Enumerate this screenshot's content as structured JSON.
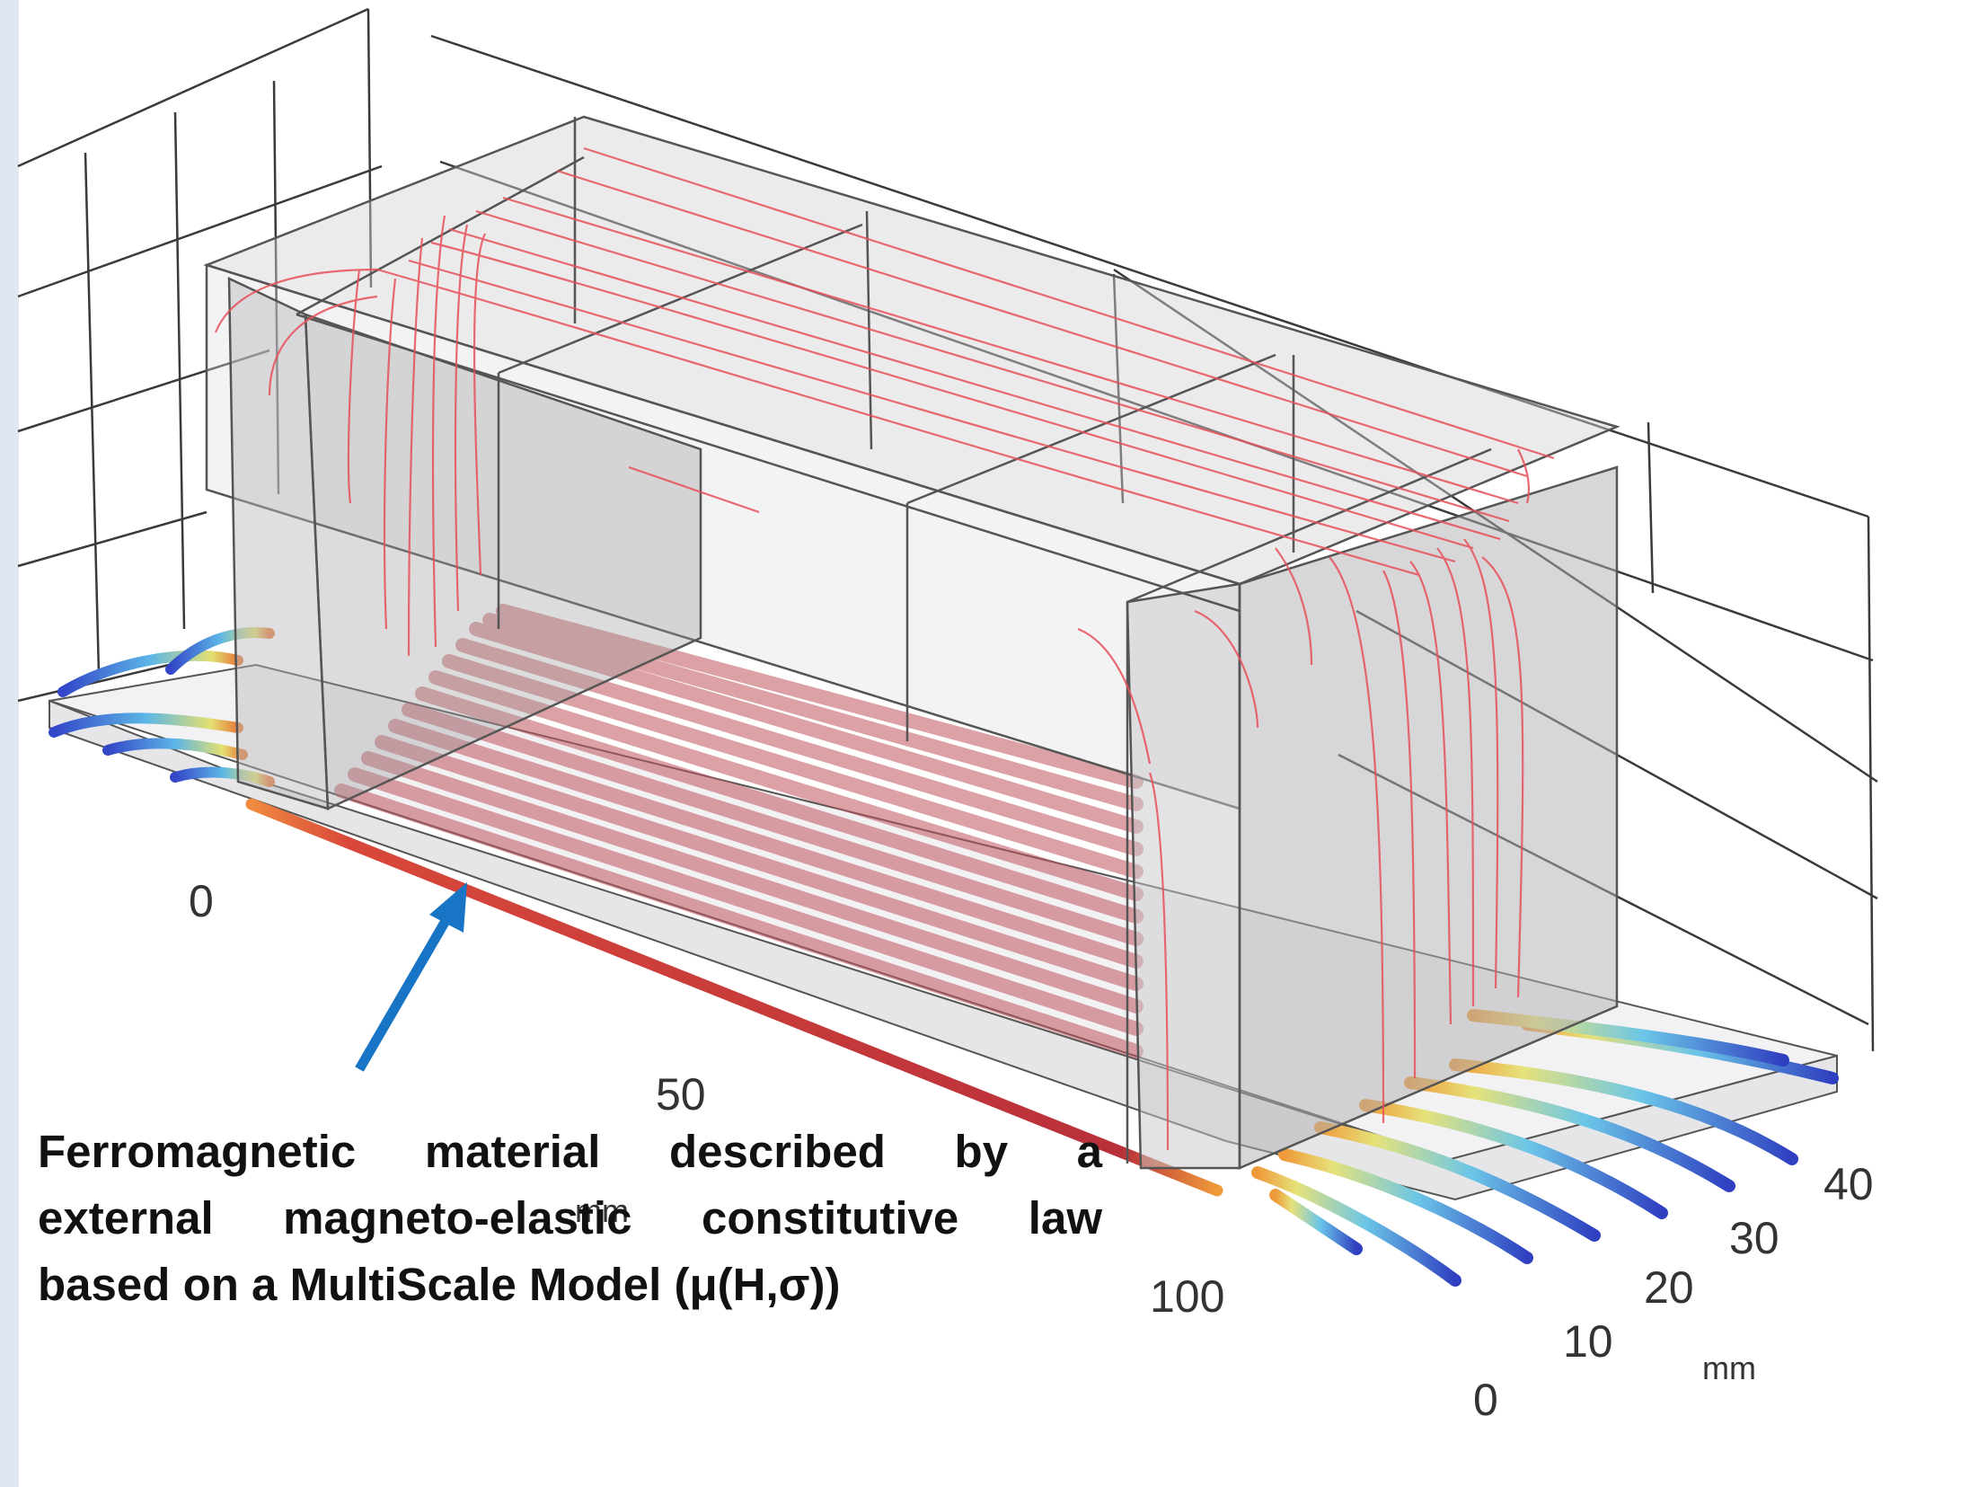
{
  "axes": {
    "x_ticks": [
      "0",
      "50",
      "100"
    ],
    "x_unit": "mm",
    "y_ticks": [
      "0",
      "10",
      "20",
      "30",
      "40"
    ],
    "y_unit": "mm"
  },
  "annotation": {
    "line1": "Ferromagnetic material described by a",
    "line2": "external magneto-elastic constitutive law",
    "line3": "based on a MultiScale Model (μ(H,σ))",
    "arrow_color": "#1874c4"
  },
  "colors": {
    "field_lines": "#e8505a",
    "plate_stripes": "#c0555c",
    "core": "#c8c8c8",
    "grid": "#3a3a3a"
  }
}
